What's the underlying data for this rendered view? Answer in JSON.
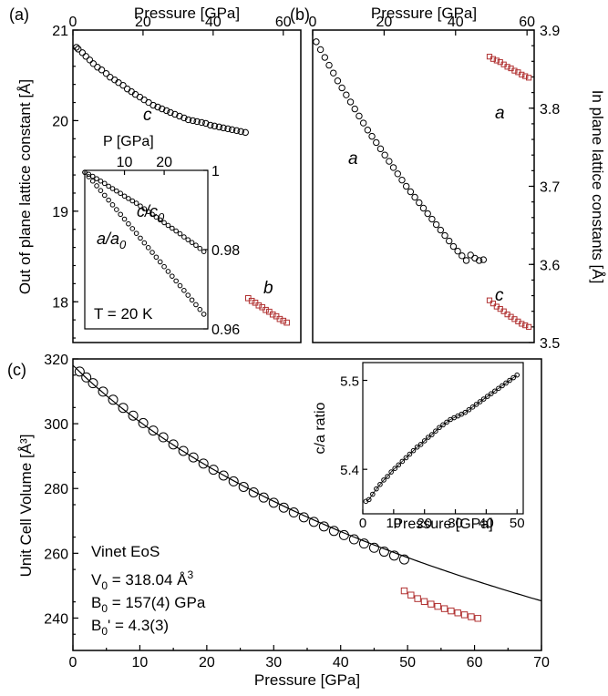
{
  "colors": {
    "hp_marker": "#000000",
    "high_pressure_marker": "#b03030",
    "axis": "#000000"
  },
  "chart_data": [
    {
      "panel": "a",
      "panel_label": "(a)",
      "type": "scatter",
      "xlabel": "",
      "x2label": "Pressure [GPa]",
      "ylabel": "Out of plane lattice constant [Å]",
      "xlim": [
        0,
        65
      ],
      "ylim": [
        17.55,
        21.0
      ],
      "x2ticks": [
        "0",
        "20",
        "40",
        "60"
      ],
      "yticks": [
        "18",
        "19",
        "20",
        "21"
      ],
      "grid": false,
      "annotations": [
        "c",
        "b"
      ],
      "series": [
        {
          "name": "c",
          "marker": "circle",
          "color": "#000000",
          "x": [
            1.0,
            1.5,
            2.7,
            3.7,
            4.8,
            5.8,
            7.0,
            8.2,
            9.5,
            10.6,
            11.9,
            13.0,
            14.3,
            15.5,
            16.7,
            17.8,
            19.1,
            20.3,
            21.6,
            22.9,
            24.2,
            25.4,
            26.7,
            27.8,
            29.1,
            30.4,
            31.7,
            32.9,
            34.2,
            35.4,
            36.7,
            37.9,
            39.2,
            40.4,
            41.7,
            42.9,
            44.2,
            45.4,
            46.7,
            47.9,
            49.2
          ],
          "y": [
            20.81,
            20.79,
            20.75,
            20.71,
            20.67,
            20.63,
            20.59,
            20.56,
            20.52,
            20.48,
            20.45,
            20.42,
            20.39,
            20.35,
            20.32,
            20.29,
            20.26,
            20.23,
            20.2,
            20.17,
            20.15,
            20.13,
            20.11,
            20.09,
            20.07,
            20.05,
            20.03,
            20.01,
            20.0,
            19.99,
            19.98,
            19.97,
            19.95,
            19.94,
            19.93,
            19.92,
            19.91,
            19.9,
            19.89,
            19.88,
            19.87
          ]
        },
        {
          "name": "b",
          "marker": "square",
          "color": "#b03030",
          "x": [
            50.0,
            51.0,
            52.0,
            53.0,
            54.0,
            55.0,
            56.0,
            57.0,
            58.0,
            59.0,
            60.0,
            61.0
          ],
          "y": [
            18.04,
            18.01,
            17.99,
            17.96,
            17.94,
            17.91,
            17.89,
            17.86,
            17.84,
            17.81,
            17.79,
            17.77
          ]
        }
      ]
    },
    {
      "panel": "a-inset",
      "type": "scatter",
      "xlabel": "P [GPa]",
      "ylabel": "",
      "xlim": [
        0,
        31
      ],
      "ylim": [
        0.96,
        1.0
      ],
      "xticks": [
        "10",
        "20"
      ],
      "yticks": [
        "0.96",
        "0.98",
        "1"
      ],
      "annotations": [
        "c/c0",
        "a/a0",
        "T = 20 K"
      ],
      "series": [
        {
          "name": "c/c0",
          "marker": "circle",
          "color": "#000000",
          "x": [
            0.0,
            1.0,
            2.0,
            3.0,
            4.0,
            5.0,
            6.0,
            7.0,
            8.0,
            9.0,
            10.0,
            11.0,
            12.0,
            13.0,
            14.0,
            15.0,
            16.0,
            17.0,
            18.0,
            19.0,
            20.0,
            21.0,
            22.0,
            23.0,
            24.0,
            25.0,
            26.0,
            27.0,
            28.0,
            29.0,
            30.0
          ],
          "y": [
            0.9995,
            0.999,
            0.9985,
            0.9979,
            0.9973,
            0.9967,
            0.996,
            0.9954,
            0.9948,
            0.9942,
            0.9935,
            0.9929,
            0.9923,
            0.9917,
            0.991,
            0.9903,
            0.9896,
            0.9889,
            0.9882,
            0.9875,
            0.9868,
            0.9861,
            0.9854,
            0.9847,
            0.984,
            0.9832,
            0.9825,
            0.9818,
            0.9811,
            0.9803,
            0.9795
          ]
        },
        {
          "name": "a/a0",
          "marker": "circle",
          "color": "#000000",
          "x": [
            0.0,
            1.0,
            2.0,
            3.0,
            4.0,
            5.0,
            6.0,
            7.0,
            8.0,
            9.0,
            10.0,
            11.0,
            12.0,
            13.0,
            14.0,
            15.0,
            16.0,
            17.0,
            18.0,
            19.0,
            20.0,
            21.0,
            22.0,
            23.0,
            24.0,
            25.0,
            26.0,
            27.0,
            28.0,
            29.0,
            30.0
          ],
          "y": [
            0.9995,
            0.9984,
            0.9973,
            0.9961,
            0.9949,
            0.9937,
            0.9925,
            0.9913,
            0.9901,
            0.9889,
            0.9877,
            0.9865,
            0.9853,
            0.9841,
            0.9829,
            0.9817,
            0.9805,
            0.9793,
            0.9781,
            0.9769,
            0.9757,
            0.9745,
            0.9733,
            0.9721,
            0.9709,
            0.9697,
            0.9685,
            0.9673,
            0.9661,
            0.9649,
            0.9637
          ]
        }
      ]
    },
    {
      "panel": "b",
      "panel_label": "(b)",
      "type": "scatter",
      "x2label": "Pressure [GPa]",
      "ylabel": "In plane lattice constants [Å]",
      "xlim": [
        0,
        62
      ],
      "ylim": [
        3.5,
        3.9
      ],
      "x2ticks": [
        "0",
        "20",
        "40",
        "60"
      ],
      "yticks": [
        "3.5",
        "3.6",
        "3.7",
        "3.8",
        "3.9"
      ],
      "grid": false,
      "annotations": [
        "a",
        "a",
        "c"
      ],
      "series": [
        {
          "name": "a",
          "marker": "circle",
          "color": "#000000",
          "x": [
            1.0,
            2.2,
            3.4,
            4.6,
            5.8,
            7.0,
            8.2,
            9.4,
            10.6,
            11.8,
            13.0,
            14.2,
            15.4,
            16.6,
            17.8,
            19.0,
            20.2,
            21.4,
            22.6,
            23.8,
            25.0,
            26.2,
            27.4,
            28.6,
            29.8,
            31.0,
            32.2,
            33.4,
            34.6,
            35.8,
            37.0,
            38.2,
            39.4,
            40.6,
            41.8,
            43.0,
            44.2,
            45.4,
            46.6,
            47.8
          ],
          "y": [
            3.885,
            3.875,
            3.865,
            3.855,
            3.845,
            3.835,
            3.826,
            3.817,
            3.808,
            3.799,
            3.79,
            3.781,
            3.772,
            3.764,
            3.756,
            3.748,
            3.74,
            3.732,
            3.724,
            3.716,
            3.708,
            3.7,
            3.693,
            3.686,
            3.679,
            3.672,
            3.665,
            3.658,
            3.651,
            3.644,
            3.637,
            3.63,
            3.623,
            3.617,
            3.611,
            3.605,
            3.612,
            3.608,
            3.605,
            3.606
          ]
        },
        {
          "name": "a",
          "marker": "square",
          "color": "#b03030",
          "x": [
            49.5,
            50.5,
            51.5,
            52.5,
            53.5,
            54.5,
            55.5,
            56.5,
            57.5,
            58.5,
            59.5,
            60.5
          ],
          "y": [
            3.866,
            3.863,
            3.861,
            3.859,
            3.856,
            3.853,
            3.851,
            3.848,
            3.846,
            3.843,
            3.841,
            3.839
          ]
        },
        {
          "name": "c",
          "marker": "square",
          "color": "#b03030",
          "x": [
            49.5,
            50.5,
            51.5,
            52.5,
            53.5,
            54.5,
            55.5,
            56.5,
            57.5,
            58.5,
            59.5,
            60.5
          ],
          "y": [
            3.554,
            3.55,
            3.546,
            3.543,
            3.54,
            3.536,
            3.533,
            3.53,
            3.527,
            3.524,
            3.522,
            3.52
          ]
        }
      ]
    },
    {
      "panel": "c",
      "panel_label": "(c)",
      "type": "scatter",
      "xlabel": "Pressure [GPa]",
      "ylabel": "Unit Cell Volume [Å3]",
      "xlim": [
        0,
        70
      ],
      "ylim": [
        230,
        320
      ],
      "xticks": [
        "0",
        "10",
        "20",
        "30",
        "40",
        "50",
        "60",
        "70"
      ],
      "yticks": [
        "240",
        "260",
        "280",
        "300",
        "320"
      ],
      "grid": false,
      "annotations": [
        "Vinet EoS",
        "V0 = 318.04 Å3",
        "B0 = 157(4) GPa",
        "B0' = 4.3(3)"
      ],
      "fit": {
        "name": "Vinet EoS",
        "V0": 318.04,
        "B0": 157,
        "B0p": 4.3,
        "x_range": [
          0,
          70
        ]
      },
      "series": [
        {
          "name": "data",
          "marker": "circle",
          "color": "#000000",
          "x": [
            1.0,
            2.0,
            3.0,
            4.5,
            6.0,
            7.5,
            9.0,
            10.5,
            12.0,
            13.5,
            15.0,
            16.5,
            18.0,
            19.5,
            21.0,
            22.5,
            24.0,
            25.5,
            27.0,
            28.5,
            30.0,
            31.5,
            33.0,
            34.5,
            36.0,
            37.5,
            39.0,
            40.5,
            42.0,
            43.5,
            45.0,
            46.5,
            48.0,
            49.5
          ],
          "y": [
            316.1,
            314.3,
            312.5,
            309.9,
            307.4,
            304.9,
            302.5,
            300.2,
            297.9,
            295.8,
            293.6,
            291.6,
            289.6,
            287.7,
            285.8,
            284.0,
            282.2,
            280.5,
            278.8,
            277.2,
            275.6,
            274.1,
            272.6,
            271.1,
            269.7,
            268.3,
            266.9,
            265.6,
            264.3,
            263.0,
            261.7,
            260.5,
            259.3,
            258.1
          ]
        },
        {
          "name": "high pressure",
          "marker": "square",
          "color": "#b03030",
          "x": [
            49.5,
            50.5,
            51.5,
            52.5,
            53.5,
            54.5,
            55.5,
            56.5,
            57.5,
            58.5,
            59.5,
            60.5
          ],
          "y": [
            248.4,
            247.1,
            246.0,
            245.1,
            244.3,
            243.6,
            242.9,
            242.2,
            241.6,
            241.0,
            240.4,
            239.9
          ]
        }
      ]
    },
    {
      "panel": "c-inset",
      "type": "scatter",
      "xlabel": "Pressure [GPa]",
      "ylabel": "c/a ratio",
      "xlim": [
        0,
        52
      ],
      "ylim": [
        5.35,
        5.52
      ],
      "xticks": [
        "0",
        "10",
        "20",
        "30",
        "40",
        "50"
      ],
      "yticks": [
        "5.4",
        "5.5"
      ],
      "series": [
        {
          "name": "c/a",
          "marker": "circle",
          "color": "#000000",
          "x": [
            1.0,
            2.0,
            3.2,
            4.4,
            5.6,
            6.8,
            8.0,
            9.2,
            10.4,
            11.6,
            12.8,
            14.0,
            15.2,
            16.4,
            17.6,
            18.8,
            20.0,
            21.2,
            22.4,
            23.6,
            24.8,
            26.0,
            27.2,
            28.4,
            29.6,
            30.8,
            32.0,
            33.2,
            34.4,
            35.6,
            36.8,
            38.0,
            39.2,
            40.4,
            41.6,
            42.8,
            44.0,
            45.2,
            46.4,
            47.6,
            48.8,
            50.0
          ],
          "y": [
            5.364,
            5.366,
            5.372,
            5.378,
            5.383,
            5.388,
            5.392,
            5.397,
            5.401,
            5.405,
            5.409,
            5.413,
            5.417,
            5.421,
            5.425,
            5.428,
            5.432,
            5.436,
            5.439,
            5.443,
            5.447,
            5.45,
            5.453,
            5.456,
            5.458,
            5.46,
            5.462,
            5.464,
            5.467,
            5.47,
            5.473,
            5.476,
            5.479,
            5.482,
            5.485,
            5.488,
            5.491,
            5.494,
            5.497,
            5.5,
            5.503,
            5.506
          ]
        }
      ]
    }
  ],
  "labels": {
    "a_panel": "(a)",
    "b_panel": "(b)",
    "c_panel": "(c)",
    "a_top": "Pressure [GPa]",
    "b_top": "Pressure [GPa]",
    "a_ylabel": "Out of plane lattice constant [Å]",
    "b_ylabel": "In plane lattice constants [Å]",
    "c_ylabel": "Unit Cell Volume [Å³]",
    "c_xlabel": "Pressure [GPa]",
    "a_ann_c": "c",
    "a_ann_b": "b",
    "b_ann_a1": "a",
    "b_ann_a2": "a",
    "b_ann_c": "c",
    "ain_xlabel": "P [GPa]",
    "ain_c": "c/c",
    "ain_c_sub": "0",
    "ain_a": "a/a",
    "ain_a_sub": "0",
    "ain_T": "T = 20 K",
    "cin_ylabel": "c/a ratio",
    "cin_xlabel": "Pressure [GPa]",
    "eos_title": "Vinet EoS",
    "eos_v0_a": "V",
    "eos_v0_sub": "0",
    "eos_v0_b": " = 318.04 Å",
    "eos_v0_sup": "3",
    "eos_b0_a": "B",
    "eos_b0_sub": "0",
    "eos_b0_b": " = 157(4) GPa",
    "eos_b0p_a": "B",
    "eos_b0p_sub": "0",
    "eos_b0p_b": "' = 4.3(3)"
  }
}
